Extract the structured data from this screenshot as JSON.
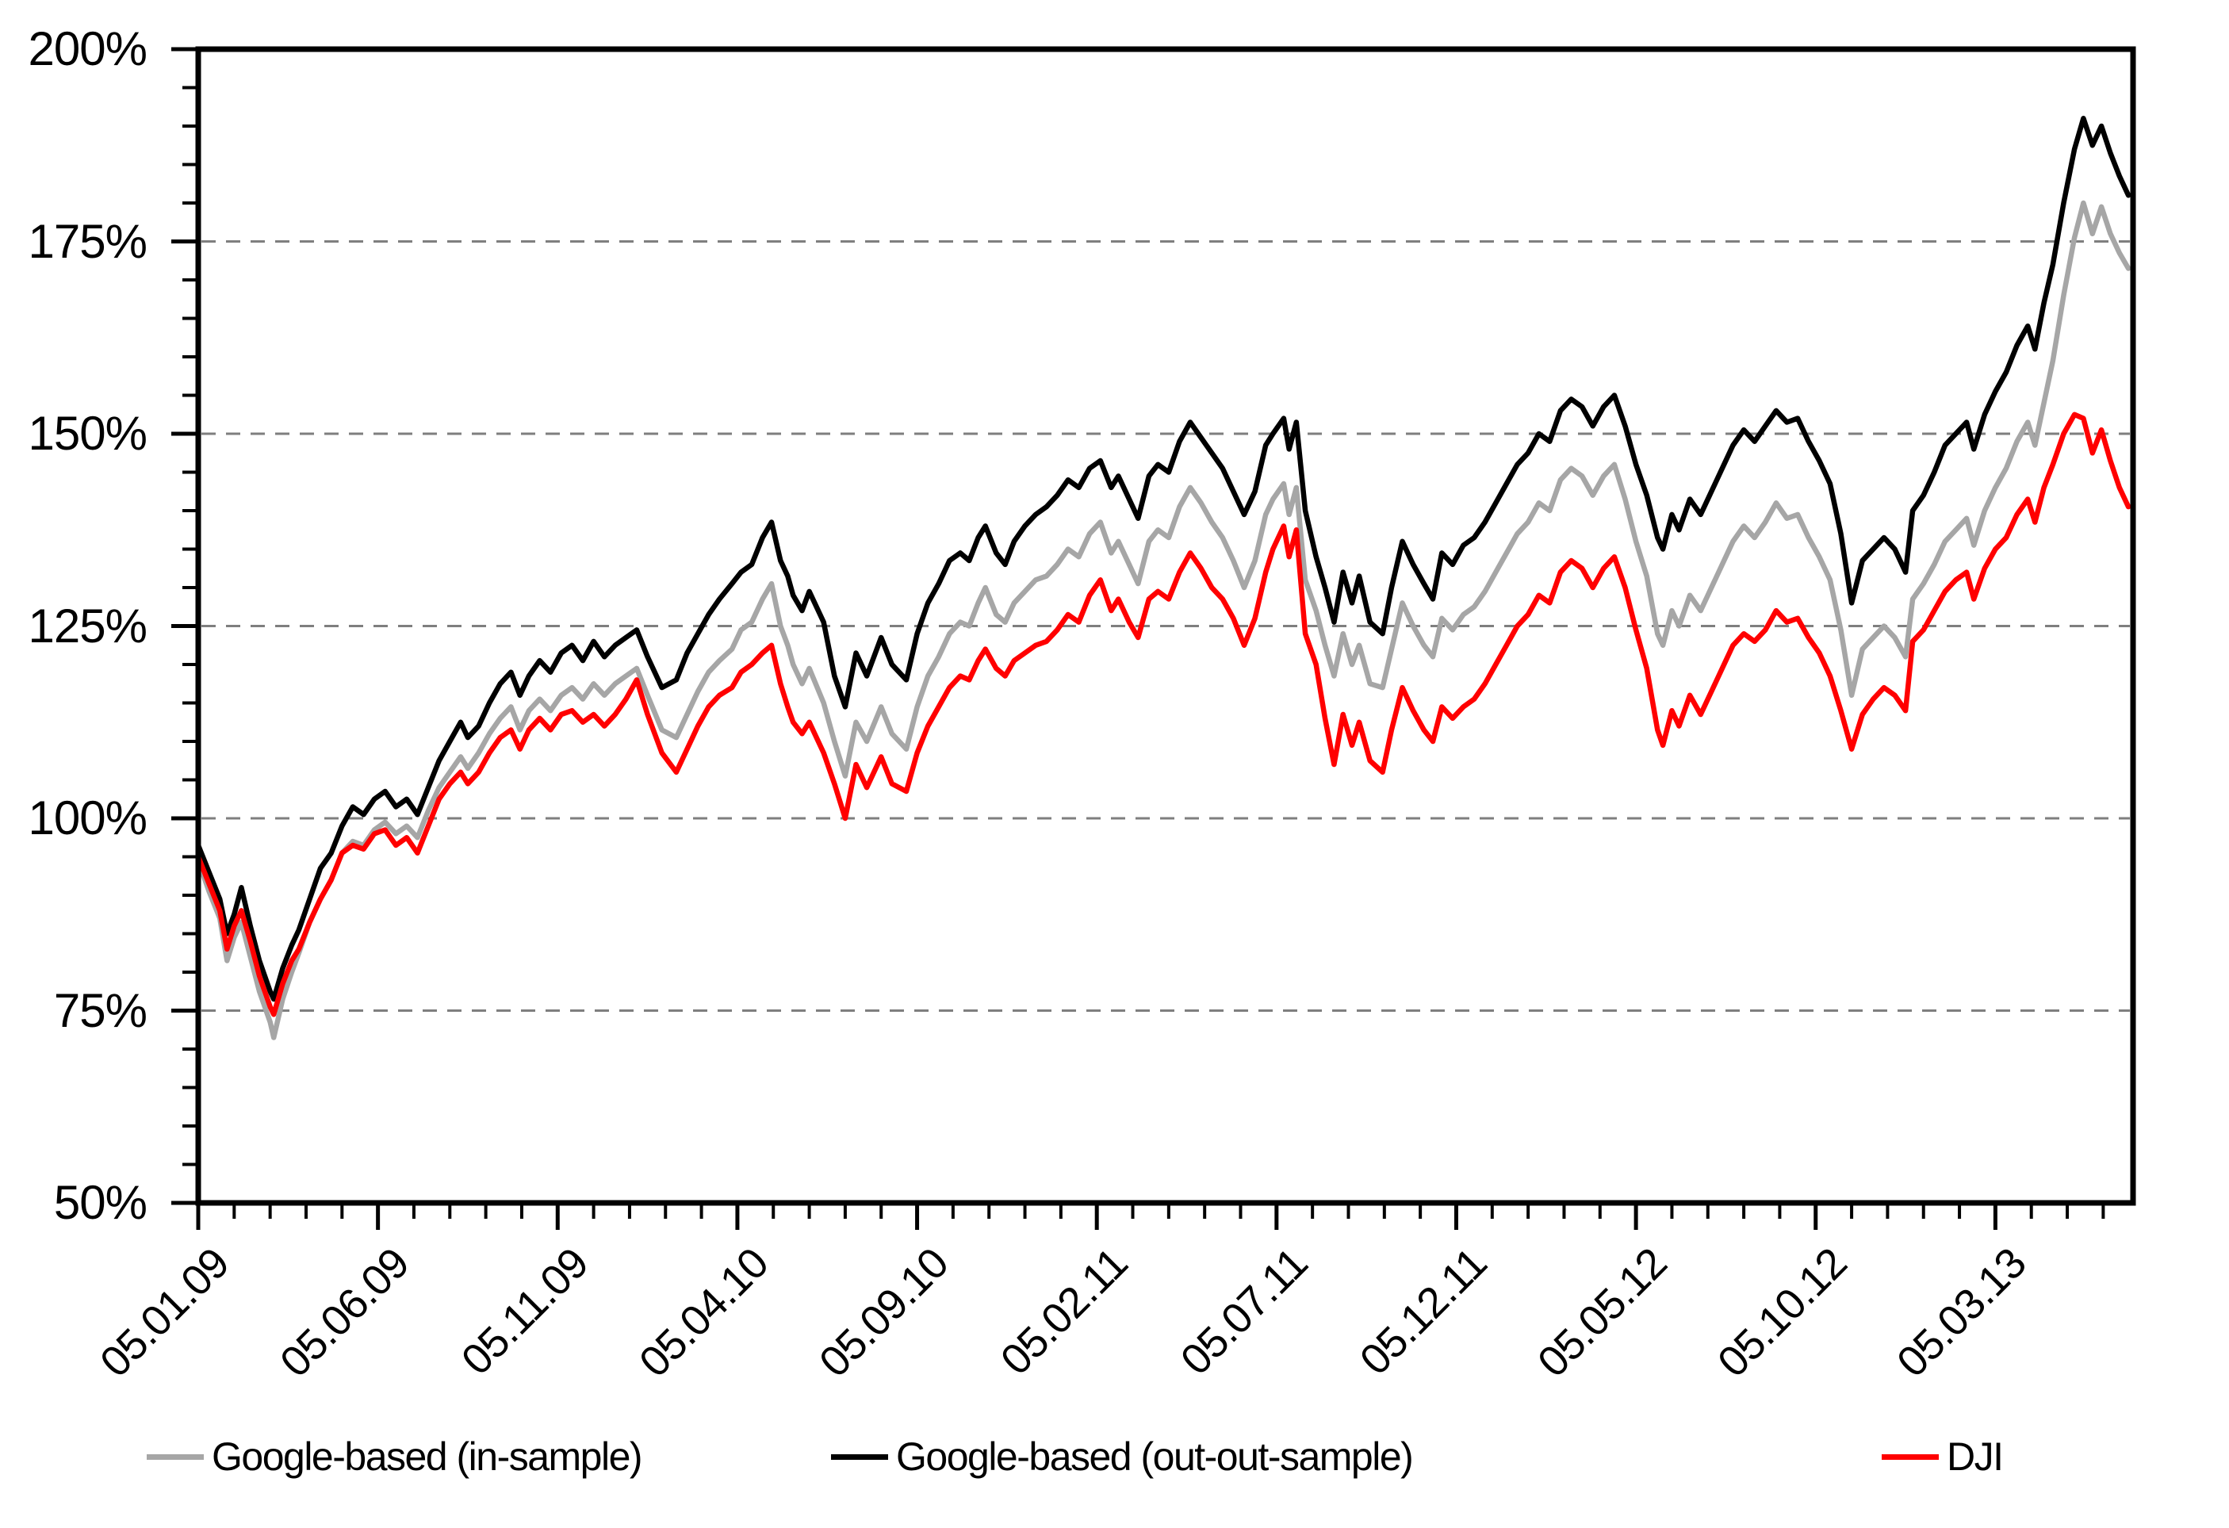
{
  "chart_data": {
    "type": "line",
    "title": "",
    "xlabel": "",
    "ylabel": "",
    "x_unit": "months since 05.01.2009 (date format dd.mm.yy)",
    "xlim_months": [
      0,
      53.83
    ],
    "ylim": [
      50,
      200
    ],
    "y_major_step": 25,
    "y_minor_step": 5,
    "x_minor_step_months": 1,
    "x_label_step_months": 5,
    "grid": "horizontal dashed gridlines at 75,100,125,150,175",
    "y_gridlines": [
      75,
      100,
      125,
      150,
      175
    ],
    "y_tick_values": [
      200,
      175,
      150,
      125,
      100,
      75,
      50
    ],
    "y_tick_labels": [
      "200%",
      "175%",
      "150%",
      "125%",
      "100%",
      "75%",
      "50%"
    ],
    "x_tick_label_values_months": [
      0,
      5,
      10,
      15,
      20,
      25,
      30,
      35,
      40,
      45,
      50
    ],
    "x_labels": [
      "05.01.09",
      "05.06.09",
      "05.11.09",
      "05.04.10",
      "05.09.10",
      "05.02.11",
      "05.07.11",
      "05.12.11",
      "05.05.12",
      "05.10.12",
      "05.03.13"
    ],
    "legend_position": "bottom",
    "months": [
      0,
      0.3,
      0.6,
      0.8,
      1.0,
      1.2,
      1.45,
      1.7,
      2.0,
      2.1,
      2.35,
      2.6,
      2.8,
      3.1,
      3.4,
      3.7,
      4.0,
      4.3,
      4.6,
      4.9,
      5.2,
      5.5,
      5.8,
      6.1,
      6.4,
      6.7,
      7.0,
      7.3,
      7.5,
      7.8,
      8.1,
      8.4,
      8.7,
      8.95,
      9.2,
      9.5,
      9.8,
      10.1,
      10.4,
      10.7,
      11.0,
      11.3,
      11.6,
      11.9,
      12.2,
      12.5,
      12.9,
      13.3,
      13.6,
      13.9,
      14.2,
      14.5,
      14.85,
      15.1,
      15.4,
      15.7,
      15.95,
      16.2,
      16.4,
      16.55,
      16.8,
      17.0,
      17.4,
      17.7,
      18.0,
      18.3,
      18.6,
      19.0,
      19.3,
      19.7,
      20.0,
      20.3,
      20.6,
      20.9,
      21.2,
      21.45,
      21.7,
      21.9,
      22.2,
      22.45,
      22.7,
      23.0,
      23.3,
      23.6,
      23.9,
      24.2,
      24.5,
      24.8,
      25.1,
      25.4,
      25.6,
      25.9,
      26.15,
      26.45,
      26.7,
      27.0,
      27.3,
      27.6,
      27.9,
      28.2,
      28.5,
      28.8,
      29.1,
      29.4,
      29.7,
      29.9,
      30.2,
      30.35,
      30.55,
      30.8,
      31.1,
      31.35,
      31.6,
      31.85,
      32.1,
      32.3,
      32.6,
      32.95,
      33.2,
      33.5,
      33.8,
      34.1,
      34.35,
      34.6,
      34.9,
      35.2,
      35.5,
      35.8,
      36.1,
      36.4,
      36.7,
      37.0,
      37.3,
      37.6,
      37.9,
      38.2,
      38.5,
      38.8,
      39.1,
      39.4,
      39.7,
      40.0,
      40.3,
      40.6,
      40.75,
      41.0,
      41.2,
      41.5,
      41.8,
      42.1,
      42.4,
      42.7,
      43.0,
      43.3,
      43.6,
      43.9,
      44.2,
      44.5,
      44.8,
      45.1,
      45.4,
      45.7,
      46.0,
      46.3,
      46.6,
      46.9,
      47.2,
      47.5,
      47.7,
      48.0,
      48.3,
      48.6,
      48.9,
      49.2,
      49.4,
      49.7,
      50.0,
      50.3,
      50.6,
      50.9,
      51.1,
      51.35,
      51.6,
      51.9,
      52.2,
      52.45,
      52.7,
      52.95,
      53.2,
      53.45,
      53.7
    ],
    "series": [
      {
        "name": "Google-based (in-sample)",
        "color": "#a6a6a6",
        "values": [
          94.5,
          90.5,
          87,
          81.5,
          84.5,
          86.5,
          82,
          77.5,
          73.5,
          71.5,
          76.5,
          80,
          82.5,
          86.5,
          89.5,
          92,
          95.5,
          97,
          96.5,
          98.5,
          99.5,
          98,
          99,
          97.5,
          101,
          104,
          106,
          108,
          106.5,
          108.5,
          111,
          113,
          114.5,
          111.5,
          114,
          115.5,
          114,
          116,
          117,
          115.5,
          117.5,
          116,
          117.5,
          118.5,
          119.5,
          116,
          111.5,
          110.5,
          113.5,
          116.5,
          119,
          120.5,
          122,
          124.5,
          125.5,
          128.5,
          130.5,
          125,
          122.5,
          120,
          117.5,
          119.5,
          115,
          110,
          105.5,
          112.5,
          110,
          114.5,
          111,
          109,
          114.5,
          118.5,
          121,
          124,
          125.5,
          125,
          128,
          130,
          126.5,
          125.5,
          128,
          129.5,
          131,
          131.5,
          133,
          135,
          134,
          137,
          138.5,
          134.5,
          136,
          133,
          130.5,
          136,
          137.5,
          136.5,
          140.5,
          143,
          141,
          138.5,
          136.5,
          133.5,
          130,
          133.5,
          139.5,
          141.5,
          143.5,
          139.5,
          143,
          131,
          127,
          122.5,
          118.5,
          124,
          120,
          122.5,
          117.5,
          117,
          122,
          128,
          125,
          122.5,
          121,
          126,
          124.5,
          126.5,
          127.5,
          129.5,
          132,
          134.5,
          137,
          138.5,
          141,
          140,
          144,
          145.5,
          144.5,
          142,
          144.5,
          146,
          141.5,
          136,
          131.5,
          124,
          122.5,
          127,
          125,
          129,
          127,
          130,
          133,
          136,
          138,
          136.5,
          138.5,
          141,
          139,
          139.5,
          136.5,
          134,
          131,
          124.5,
          116,
          122,
          123.5,
          125,
          123.5,
          121,
          128.5,
          130.5,
          133,
          136,
          137.5,
          139,
          135.5,
          140,
          143,
          145.5,
          149,
          151.5,
          148.5,
          154,
          159.5,
          168,
          175.5,
          180,
          176,
          179.5,
          176,
          173.5,
          171.5
        ]
      },
      {
        "name": "Google-based (out-out-sample)",
        "color": "#000000",
        "values": [
          96.5,
          93,
          89.5,
          85,
          87.5,
          91,
          86,
          81.5,
          77.5,
          76.5,
          80.5,
          83.5,
          85.5,
          89.5,
          93.5,
          95.5,
          99,
          101.5,
          100.5,
          102.5,
          103.5,
          101.5,
          102.5,
          100.5,
          104,
          107.5,
          110,
          112.5,
          110.5,
          112,
          115,
          117.5,
          119,
          116,
          118.5,
          120.5,
          119,
          121.5,
          122.5,
          120.5,
          123,
          121,
          122.5,
          123.5,
          124.5,
          121,
          117,
          118,
          121.5,
          124,
          126.5,
          128.5,
          130.5,
          132,
          133,
          136.5,
          138.5,
          133.5,
          131.5,
          129,
          127,
          129.5,
          125.5,
          118.5,
          114.5,
          121.5,
          118.5,
          123.5,
          120,
          118,
          124,
          128,
          130.5,
          133.5,
          134.5,
          133.5,
          136.5,
          138,
          134.5,
          133,
          136,
          138,
          139.5,
          140.5,
          142,
          144,
          143,
          145.5,
          146.5,
          143,
          144.5,
          141.5,
          139,
          144.5,
          146,
          145,
          149,
          151.5,
          149.5,
          147.5,
          145.5,
          142.5,
          139.5,
          142.5,
          148.5,
          150,
          152,
          148,
          151.5,
          140,
          134,
          130,
          125.5,
          132,
          128,
          131.5,
          125.5,
          124,
          130,
          136,
          133,
          130.5,
          128.5,
          134.5,
          133,
          135.5,
          136.5,
          138.5,
          141,
          143.5,
          146,
          147.5,
          150,
          149,
          153,
          154.5,
          153.5,
          151,
          153.5,
          155,
          151,
          146,
          142,
          136.5,
          135,
          139.5,
          137.5,
          141.5,
          139.5,
          142.5,
          145.5,
          148.5,
          150.5,
          149,
          151,
          153,
          151.5,
          152,
          149,
          146.5,
          143.5,
          137,
          128,
          133.5,
          135,
          136.5,
          135,
          132,
          140,
          142,
          145,
          148.5,
          150,
          151.5,
          148,
          152.5,
          155.5,
          158,
          161.5,
          164,
          161,
          167,
          172,
          180,
          187,
          191,
          187.5,
          190,
          186.5,
          183.5,
          181
        ]
      },
      {
        "name": "DJI",
        "color": "#ff0000",
        "values": [
          95,
          91.5,
          88,
          83,
          86,
          88,
          84,
          79.5,
          75.5,
          74.5,
          78.5,
          81.5,
          83,
          86.5,
          89.5,
          92,
          95.5,
          96.5,
          96,
          98,
          98.5,
          96.5,
          97.5,
          95.5,
          99,
          102.5,
          104.5,
          106,
          104.5,
          106,
          108.5,
          110.5,
          111.5,
          109,
          111.5,
          113,
          111.5,
          113.5,
          114,
          112.5,
          113.5,
          112,
          113.5,
          115.5,
          118,
          113.5,
          108.5,
          106,
          109,
          112,
          114.5,
          116,
          117,
          119,
          120,
          121.5,
          122.5,
          117.5,
          114.5,
          112.5,
          111,
          112.5,
          108.5,
          104.5,
          100,
          107,
          104,
          108,
          104.5,
          103.5,
          108.5,
          112,
          114.5,
          117,
          118.5,
          118,
          120.5,
          122,
          119.5,
          118.5,
          120.5,
          121.5,
          122.5,
          123,
          124.5,
          126.5,
          125.5,
          129,
          131,
          127,
          128.5,
          125.5,
          123.5,
          128.5,
          129.5,
          128.5,
          132,
          134.5,
          132.5,
          130,
          128.5,
          126,
          122.5,
          126,
          132,
          135,
          138,
          134,
          137.5,
          124,
          120,
          113,
          107,
          113.5,
          109.5,
          112.5,
          107.5,
          106,
          111.5,
          117,
          114,
          111.5,
          110,
          114.5,
          113,
          114.5,
          115.5,
          117.5,
          120,
          122.5,
          125,
          126.5,
          129,
          128,
          132,
          133.5,
          132.5,
          130,
          132.5,
          134,
          130,
          124.5,
          119.5,
          111.5,
          109.5,
          114,
          112,
          116,
          113.5,
          116.5,
          119.5,
          122.5,
          124,
          123,
          124.5,
          127,
          125.5,
          126,
          123.5,
          121.5,
          118.5,
          114,
          109,
          113.5,
          115.5,
          117,
          116,
          114,
          123,
          124.5,
          127,
          129.5,
          131,
          132,
          128.5,
          132.5,
          135,
          136.5,
          139.5,
          141.5,
          138.5,
          143,
          146,
          150,
          152.5,
          152,
          147.5,
          150.5,
          146.5,
          143,
          140.5
        ]
      }
    ]
  },
  "legend": {
    "items": [
      {
        "label": "Google-based (in-sample)",
        "color": "#a6a6a6"
      },
      {
        "label": "Google-based (out-out-sample)",
        "color": "#000000"
      },
      {
        "label": "DJI",
        "color": "#ff0000"
      }
    ]
  },
  "colors": {
    "frame": "#000000",
    "gridline": "#7f7f7f",
    "background": "#ffffff",
    "tick": "#000000"
  }
}
